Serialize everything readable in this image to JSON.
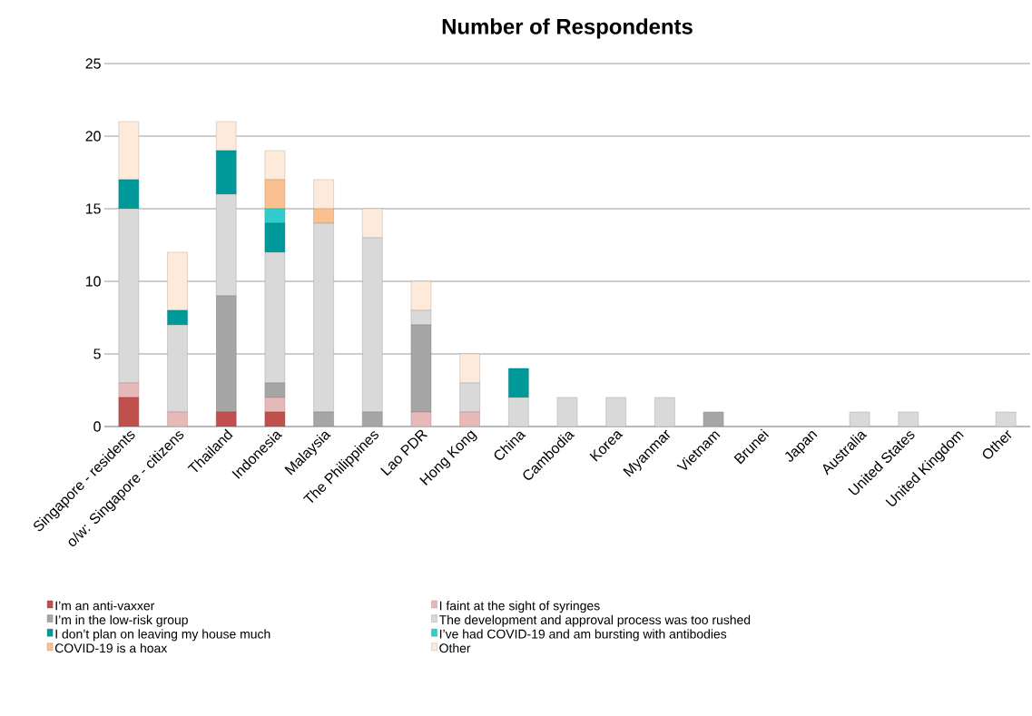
{
  "chart_data": {
    "type": "bar",
    "title": "Number of Respondents",
    "stacked": true,
    "categories": [
      "Singapore - residents",
      "o/w: Singapore - citizens",
      "Thailand",
      "Indonesia",
      "Malaysia",
      "The Philippines",
      "Lao PDR",
      "Hong Kong",
      "China",
      "Cambodia",
      "Korea",
      "Myanmar",
      "Vietnam",
      "Brunei",
      "Japan",
      "Australia",
      "United States",
      "United Kingdom",
      "Other"
    ],
    "series": [
      {
        "name": "I’m an anti-vaxxer",
        "color": "#c0504d",
        "values": [
          2,
          0,
          1,
          1,
          0,
          0,
          0,
          0,
          0,
          0,
          0,
          0,
          0,
          0,
          0,
          0,
          0,
          0,
          0
        ]
      },
      {
        "name": "I faint at the sight of syringes",
        "color": "#e6b9b8",
        "values": [
          1,
          1,
          0,
          1,
          0,
          0,
          1,
          1,
          0,
          0,
          0,
          0,
          0,
          0,
          0,
          0,
          0,
          0,
          0
        ]
      },
      {
        "name": "I’m in the low-risk group",
        "color": "#a6a6a6",
        "values": [
          0,
          0,
          8,
          1,
          1,
          1,
          6,
          0,
          0,
          0,
          0,
          0,
          1,
          0,
          0,
          0,
          0,
          0,
          0
        ]
      },
      {
        "name": "The development and approval process was too rushed",
        "color": "#d9d9d9",
        "values": [
          12,
          6,
          7,
          9,
          13,
          12,
          1,
          2,
          2,
          2,
          2,
          2,
          0,
          0,
          0,
          1,
          1,
          0,
          1
        ]
      },
      {
        "name": "I don’t plan on leaving my house much",
        "color": "#009999",
        "values": [
          2,
          1,
          3,
          2,
          0,
          0,
          0,
          0,
          2,
          0,
          0,
          0,
          0,
          0,
          0,
          0,
          0,
          0,
          0
        ]
      },
      {
        "name": "I’ve had COVID-19 and am bursting with antibodies",
        "color": "#33cccc",
        "values": [
          0,
          0,
          0,
          1,
          0,
          0,
          0,
          0,
          0,
          0,
          0,
          0,
          0,
          0,
          0,
          0,
          0,
          0,
          0
        ]
      },
      {
        "name": "COVID-19 is a hoax",
        "color": "#fac090",
        "values": [
          0,
          0,
          0,
          2,
          1,
          0,
          0,
          0,
          0,
          0,
          0,
          0,
          0,
          0,
          0,
          0,
          0,
          0,
          0
        ]
      },
      {
        "name": "Other",
        "color": "#fdeada",
        "values": [
          4,
          4,
          2,
          2,
          2,
          2,
          2,
          2,
          0,
          0,
          0,
          0,
          0,
          0,
          0,
          0,
          0,
          0,
          0
        ]
      }
    ],
    "ylim": [
      0,
      25
    ],
    "yticks": [
      0,
      5,
      10,
      15,
      20,
      25
    ],
    "grid": "y",
    "legend": "bottom"
  }
}
